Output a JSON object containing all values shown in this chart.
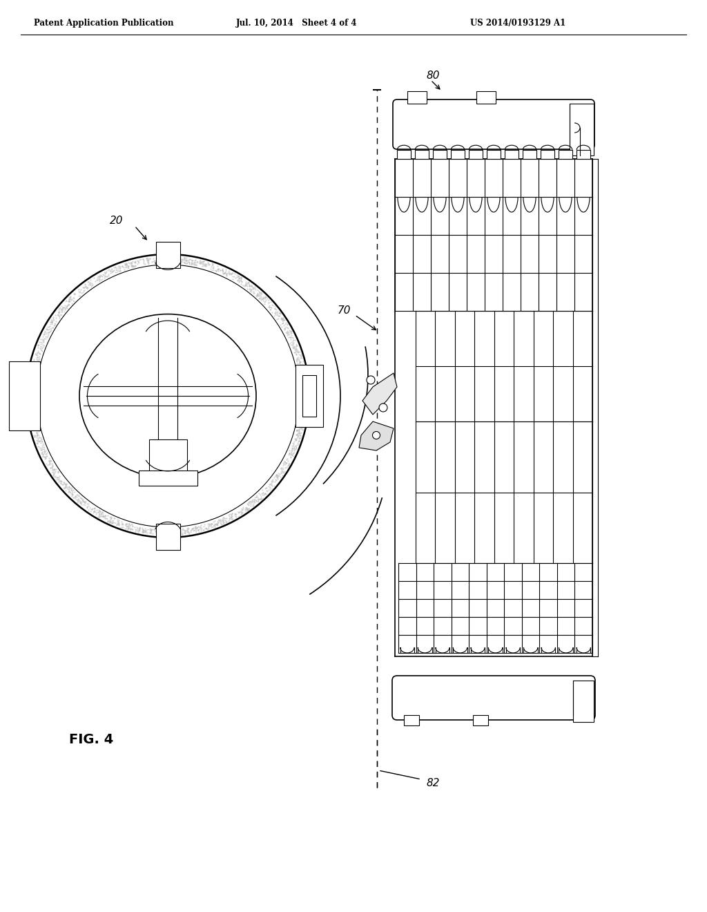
{
  "bg_color": "#ffffff",
  "line_color": "#000000",
  "header_text": "Patent Application Publication",
  "header_date": "Jul. 10, 2014   Sheet 4 of 4",
  "header_patent": "US 2014/0193129 A1",
  "fig_label": "FIG. 4",
  "label_20": "20",
  "label_70": "70",
  "label_80": "80",
  "label_82": "82"
}
